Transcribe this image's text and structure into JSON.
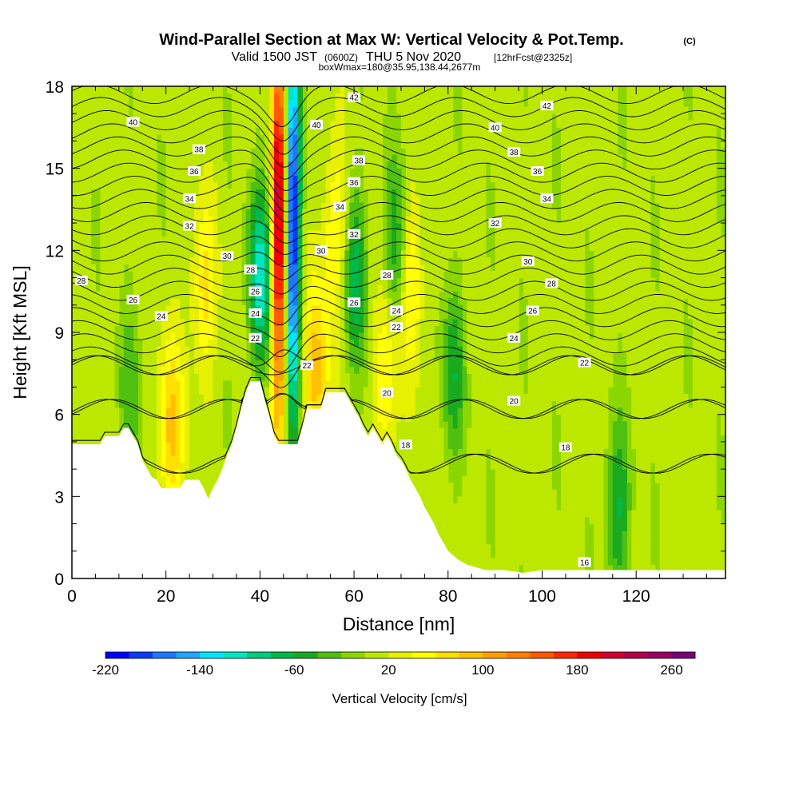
{
  "header": {
    "title": "Wind-Parallel Section at Max W: Vertical Velocity & Pot.Temp.",
    "title_mark": "(C)",
    "subtitle_pre": "Valid 1500 JST",
    "subtitle_utc": "(0600Z)",
    "subtitle_mid": "THU 5 Nov 2020",
    "subtitle_fcst": "[12hrFcst@2325z]",
    "subtitle3": "boxWmax=180@35.95,138.44,2677m"
  },
  "chart_data": {
    "type": "heatmap",
    "xlabel": "Distance [nm]",
    "ylabel": "Height [Kft MSL]",
    "xlim": [
      0,
      139
    ],
    "ylim": [
      0,
      18
    ],
    "x_ticks": [
      0,
      20,
      40,
      60,
      80,
      100,
      120
    ],
    "y_ticks": [
      0,
      3,
      6,
      9,
      12,
      15,
      18
    ],
    "colorbar": {
      "label": "Vertical Velocity [cm/s]",
      "min": -220,
      "max": 280,
      "step": 20,
      "tick_values": [
        -220,
        -140,
        -60,
        20,
        100,
        180,
        260
      ],
      "colors": [
        "#0000ff",
        "#0a3cff",
        "#1e78ff",
        "#1ea8ff",
        "#00e6ff",
        "#00e6c0",
        "#00cc80",
        "#00b84a",
        "#1aaa20",
        "#50c010",
        "#8cd600",
        "#bce800",
        "#e6f000",
        "#ffff00",
        "#ffe000",
        "#ffc000",
        "#ffa000",
        "#ff8000",
        "#ff5a00",
        "#ff2800",
        "#f00000",
        "#d20032",
        "#b4004b",
        "#9b0064",
        "#780078"
      ]
    },
    "terrain_kft": [
      [
        0,
        4.9
      ],
      [
        6,
        4.9
      ],
      [
        7,
        5.2
      ],
      [
        10,
        5.2
      ],
      [
        11,
        5.5
      ],
      [
        12,
        5.5
      ],
      [
        13,
        5.2
      ],
      [
        14,
        4.9
      ],
      [
        15,
        4.3
      ],
      [
        16,
        4.0
      ],
      [
        17,
        3.7
      ],
      [
        18,
        3.6
      ],
      [
        19,
        3.3
      ],
      [
        23,
        3.3
      ],
      [
        24,
        3.6
      ],
      [
        27,
        3.6
      ],
      [
        28,
        3.3
      ],
      [
        29,
        2.9
      ],
      [
        30,
        3.3
      ],
      [
        31,
        3.6
      ],
      [
        32,
        4.0
      ],
      [
        33,
        4.5
      ],
      [
        34,
        4.9
      ],
      [
        35,
        5.5
      ],
      [
        36,
        6.2
      ],
      [
        37,
        6.8
      ],
      [
        38,
        7.2
      ],
      [
        40,
        7.2
      ],
      [
        41,
        6.5
      ],
      [
        42,
        5.9
      ],
      [
        43,
        5.2
      ],
      [
        44,
        4.9
      ],
      [
        48,
        4.9
      ],
      [
        49,
        5.5
      ],
      [
        50,
        6.2
      ],
      [
        53,
        6.2
      ],
      [
        54,
        6.8
      ],
      [
        58,
        6.8
      ],
      [
        59,
        6.5
      ],
      [
        60,
        6.2
      ],
      [
        61,
        5.9
      ],
      [
        62,
        5.5
      ],
      [
        63,
        5.2
      ],
      [
        64,
        5.5
      ],
      [
        65,
        5.2
      ],
      [
        66,
        4.9
      ],
      [
        67,
        5.2
      ],
      [
        68,
        4.9
      ],
      [
        69,
        4.5
      ],
      [
        70,
        4.3
      ],
      [
        71,
        4.0
      ],
      [
        72,
        3.6
      ],
      [
        73,
        3.3
      ],
      [
        74,
        3.0
      ],
      [
        75,
        2.6
      ],
      [
        76,
        2.3
      ],
      [
        77,
        2.0
      ],
      [
        78,
        1.6
      ],
      [
        79,
        1.3
      ],
      [
        80,
        1.0
      ],
      [
        82,
        0.7
      ],
      [
        84,
        0.5
      ],
      [
        86,
        0.4
      ],
      [
        88,
        0.3
      ],
      [
        92,
        0.3
      ],
      [
        96,
        0.2
      ],
      [
        100,
        0.3
      ],
      [
        110,
        0.3
      ],
      [
        115,
        0.3
      ],
      [
        120,
        0.3
      ],
      [
        130,
        0.3
      ],
      [
        139,
        0.3
      ]
    ],
    "velocity_features": [
      {
        "x": 21,
        "y": 5.5,
        "peak": 80
      },
      {
        "x": 28,
        "y": 10.5,
        "peak": 60
      },
      {
        "x": 44,
        "y": 13.0,
        "peak": 220
      },
      {
        "x": 47,
        "y": 13.0,
        "peak": -220
      },
      {
        "x": 40,
        "y": 11.0,
        "peak": -120
      },
      {
        "x": 52,
        "y": 7.5,
        "peak": 80
      },
      {
        "x": 56,
        "y": 12.5,
        "peak": 60
      },
      {
        "x": 60,
        "y": 11.0,
        "peak": -80
      },
      {
        "x": 67,
        "y": 7.5,
        "peak": 60
      },
      {
        "x": 69,
        "y": 12.0,
        "peak": -70
      },
      {
        "x": 72,
        "y": 11.0,
        "peak": 60
      },
      {
        "x": 81,
        "y": 7.5,
        "peak": -60
      },
      {
        "x": 116,
        "y": 2.5,
        "peak": -70
      },
      {
        "x": 12,
        "y": 6.5,
        "peak": -40
      }
    ],
    "isentropes": [
      {
        "theta": 16,
        "label_x": 109,
        "label_y": 0.6
      },
      {
        "theta": 18,
        "label_x": 105,
        "label_y": 4.8
      },
      {
        "theta": 20,
        "label_x": 94,
        "label_y": 6.5
      },
      {
        "theta": 22,
        "label_x": 109,
        "label_y": 7.9
      },
      {
        "theta": 24,
        "label_x": 94,
        "label_y": 8.8
      },
      {
        "theta": 26,
        "label_x": 98,
        "label_y": 9.8
      },
      {
        "theta": 28,
        "label_x": 102,
        "label_y": 10.8
      },
      {
        "theta": 30,
        "label_x": 97,
        "label_y": 11.6
      },
      {
        "theta": 32,
        "label_x": 90,
        "label_y": 13.0
      },
      {
        "theta": 34,
        "label_x": 101,
        "label_y": 13.9
      },
      {
        "theta": 36,
        "label_x": 99,
        "label_y": 14.9
      },
      {
        "theta": 38,
        "label_x": 94,
        "label_y": 15.6
      },
      {
        "theta": 40,
        "label_x": 90,
        "label_y": 16.5
      },
      {
        "theta": 42,
        "label_x": 101,
        "label_y": 17.3
      }
    ],
    "extra_contour_labels": [
      {
        "theta": 40,
        "x": 13,
        "y": 16.7
      },
      {
        "theta": 38,
        "x": 27,
        "y": 15.7
      },
      {
        "theta": 36,
        "x": 26,
        "y": 14.9
      },
      {
        "theta": 34,
        "x": 25,
        "y": 13.9
      },
      {
        "theta": 32,
        "x": 25,
        "y": 12.9
      },
      {
        "theta": 30,
        "x": 33,
        "y": 11.8
      },
      {
        "theta": 28,
        "x": 2,
        "y": 10.9
      },
      {
        "theta": 26,
        "x": 13,
        "y": 10.2
      },
      {
        "theta": 24,
        "x": 19,
        "y": 9.6
      },
      {
        "theta": 28,
        "x": 38,
        "y": 11.3
      },
      {
        "theta": 26,
        "x": 39,
        "y": 10.5
      },
      {
        "theta": 24,
        "x": 39,
        "y": 9.7
      },
      {
        "theta": 22,
        "x": 39,
        "y": 8.8
      },
      {
        "theta": 40,
        "x": 52,
        "y": 16.6
      },
      {
        "theta": 38,
        "x": 61,
        "y": 15.3
      },
      {
        "theta": 36,
        "x": 60,
        "y": 14.5
      },
      {
        "theta": 34,
        "x": 57,
        "y": 13.6
      },
      {
        "theta": 32,
        "x": 60,
        "y": 12.6
      },
      {
        "theta": 30,
        "x": 53,
        "y": 12.0
      },
      {
        "theta": 28,
        "x": 67,
        "y": 11.1
      },
      {
        "theta": 26,
        "x": 60,
        "y": 10.1
      },
      {
        "theta": 24,
        "x": 69,
        "y": 9.8
      },
      {
        "theta": 22,
        "x": 69,
        "y": 9.2
      },
      {
        "theta": 22,
        "x": 50,
        "y": 7.8
      },
      {
        "theta": 20,
        "x": 67,
        "y": 6.8
      },
      {
        "theta": 18,
        "x": 71,
        "y": 4.9
      },
      {
        "theta": 42,
        "x": 60,
        "y": 17.6
      }
    ]
  }
}
